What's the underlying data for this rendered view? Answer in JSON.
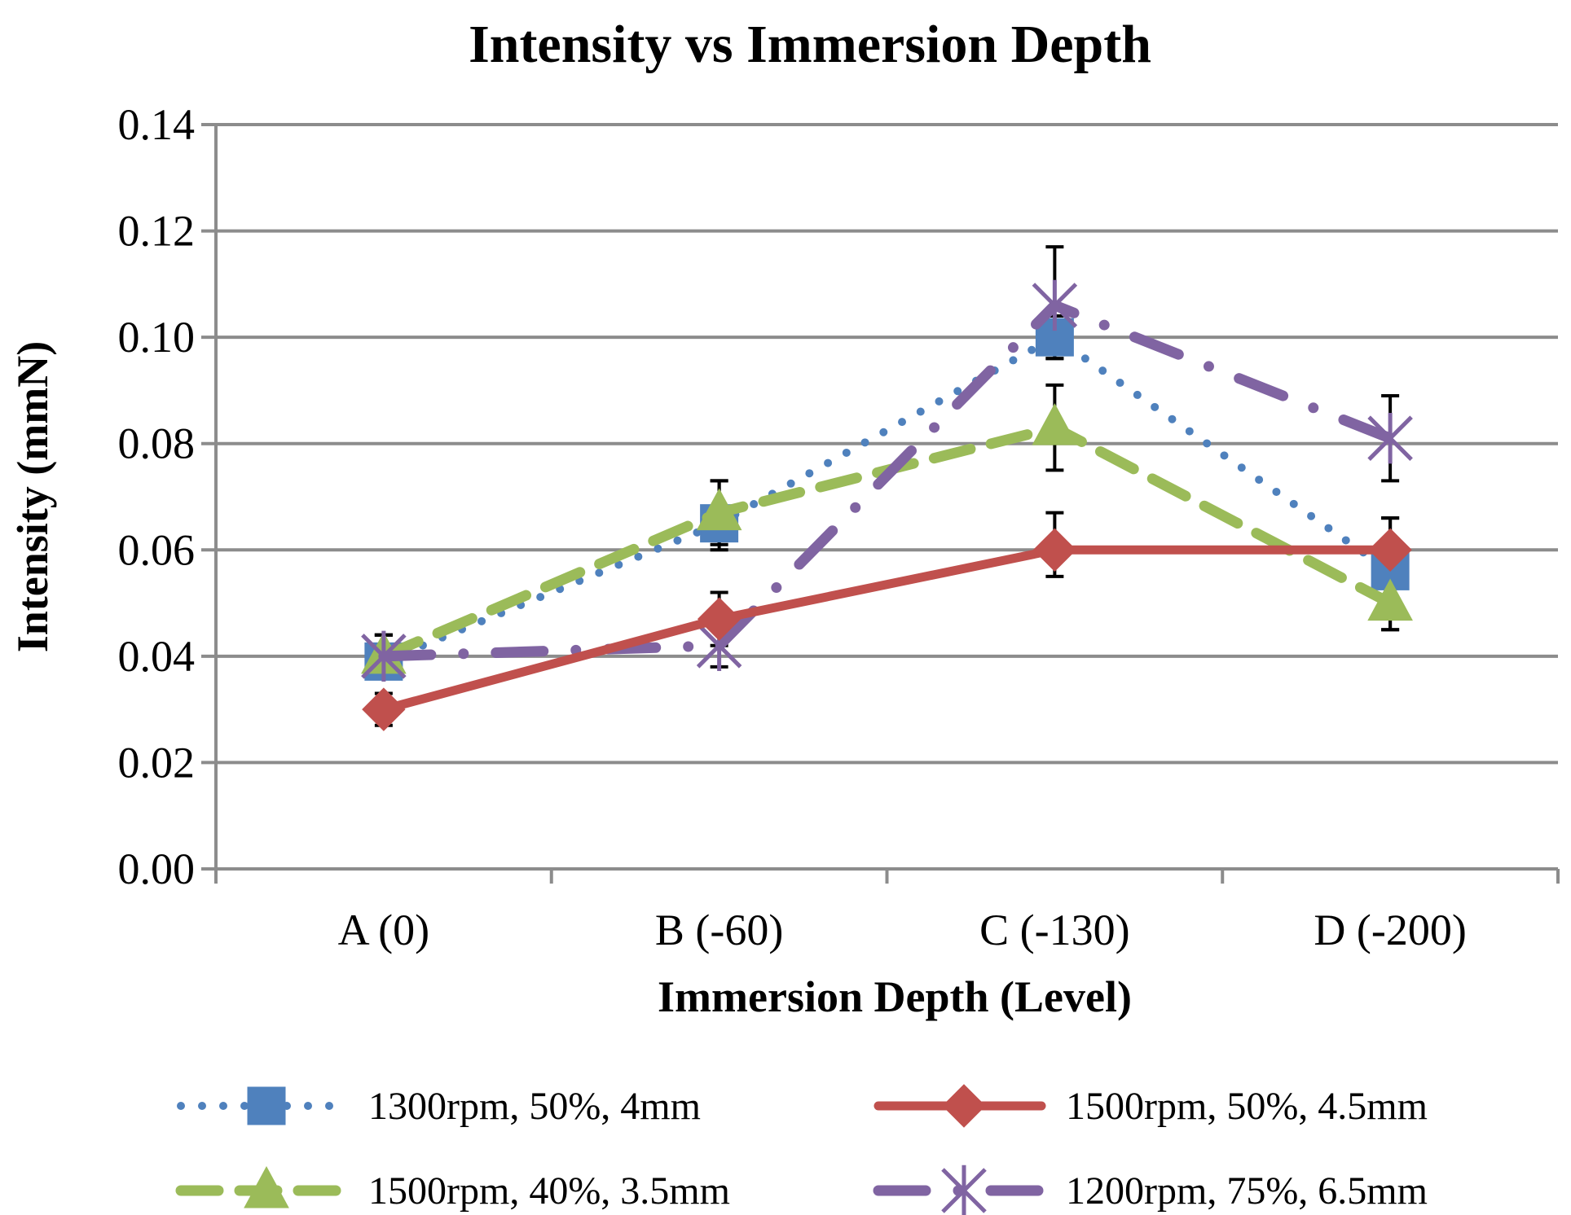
{
  "chart_data": {
    "type": "line",
    "title": "Intensity vs Immersion Depth",
    "xlabel": "Immersion Depth (Level)",
    "ylabel": "Intensity (mmN)",
    "categories": [
      "A (0)",
      "B (-60)",
      "C (-130)",
      "D (-200)"
    ],
    "ylim": [
      0,
      0.14
    ],
    "yticks": [
      0.0,
      0.02,
      0.04,
      0.06,
      0.08,
      0.1,
      0.12,
      0.14
    ],
    "ytick_labels": [
      "0.00",
      "0.02",
      "0.04",
      "0.06",
      "0.08",
      "0.10",
      "0.12",
      "0.14"
    ],
    "grid": true,
    "legend_position": "bottom",
    "series": [
      {
        "name": "1300rpm, 50%, 4mm",
        "color": "#4F81BD",
        "line_style": "dotted",
        "marker": "square",
        "values": [
          0.039,
          0.065,
          0.1,
          0.056
        ],
        "err_low": [
          0.036,
          0.06,
          0.096,
          0.045
        ],
        "err_high": [
          0.044,
          0.073,
          0.104,
          0.066
        ]
      },
      {
        "name": "1500rpm, 50%, 4.5mm",
        "color": "#C0504D",
        "line_style": "solid",
        "marker": "diamond",
        "values": [
          0.03,
          0.047,
          0.06,
          0.06
        ],
        "err_low": [
          0.027,
          0.042,
          0.055,
          0.055
        ],
        "err_high": [
          0.033,
          0.052,
          0.067,
          0.066
        ]
      },
      {
        "name": "1500rpm, 40%, 3.5mm",
        "color": "#9BBB59",
        "line_style": "dashed",
        "marker": "triangle",
        "values": [
          0.04,
          0.067,
          0.083,
          0.05
        ],
        "err_low": [
          0.036,
          0.061,
          0.075,
          0.045
        ],
        "err_high": [
          0.044,
          0.073,
          0.091,
          0.055
        ]
      },
      {
        "name": "1200rpm, 75%, 6.5mm",
        "color": "#8064A2",
        "line_style": "dash-dot",
        "marker": "star",
        "values": [
          0.04,
          0.042,
          0.106,
          0.081
        ],
        "err_low": [
          0.036,
          0.038,
          0.096,
          0.073
        ],
        "err_high": [
          0.044,
          0.046,
          0.117,
          0.089
        ]
      }
    ]
  }
}
